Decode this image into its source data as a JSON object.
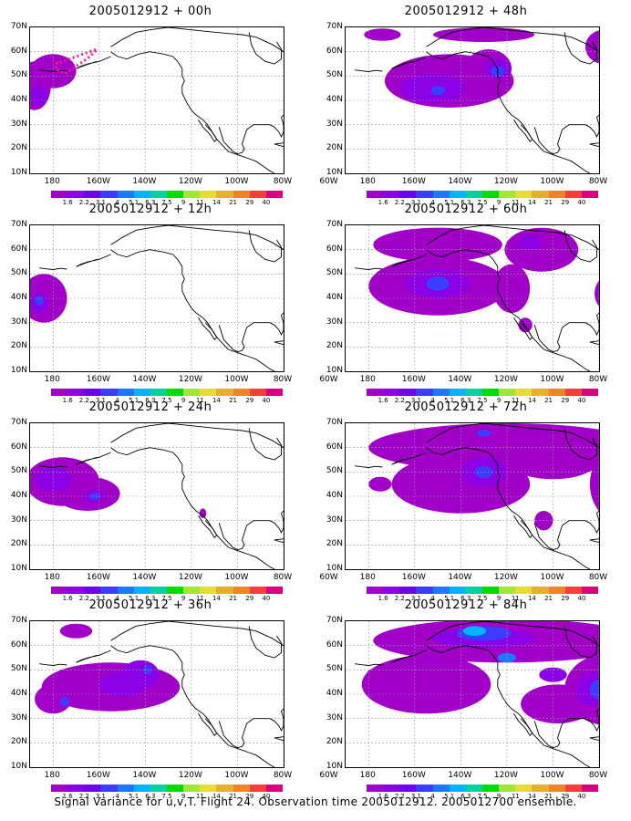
{
  "figure": {
    "caption": "Signal Variance for u,v,T. Flight 24. Observation time 2005012912. 2005012700 ensemble."
  },
  "axes": {
    "lat_labels": [
      "70N",
      "60N",
      "50N",
      "40N",
      "30N",
      "20N",
      "10N"
    ],
    "lon_labels": [
      "180",
      "160W",
      "140W",
      "120W",
      "100W",
      "80W",
      "60W"
    ]
  },
  "colorbar": {
    "labels": [
      "1.6",
      "2.2",
      "3.1",
      "4",
      "5.1",
      "6.3",
      "7.5",
      "9",
      "11",
      "14",
      "21",
      "29",
      "40"
    ],
    "colors": [
      "#a000c8",
      "#8c00e6",
      "#6e00f0",
      "#3c3cff",
      "#1e78ff",
      "#00b4ff",
      "#00d2a0",
      "#00dc00",
      "#a0e632",
      "#e6dc32",
      "#e6af2d",
      "#f08228",
      "#fa3c3c",
      "#dc0080"
    ]
  },
  "colors": {
    "light": "#a000c8",
    "mid": "#8c00e6",
    "deep": "#6e00f0",
    "blue": "#3c3cff",
    "sky": "#1e78ff",
    "cyan": "#00b4ff",
    "flight": "#ff1493",
    "coast": "#000000"
  },
  "panels": [
    {
      "title": "2005012912 + 00h"
    },
    {
      "title": "2005012912 + 48h"
    },
    {
      "title": "2005012912 + 12h"
    },
    {
      "title": "2005012912 + 60h"
    },
    {
      "title": "2005012912 + 24h"
    },
    {
      "title": "2005012912 + 72h"
    },
    {
      "title": "2005012912 + 36h"
    },
    {
      "title": "2005012912 + 84h"
    }
  ]
}
